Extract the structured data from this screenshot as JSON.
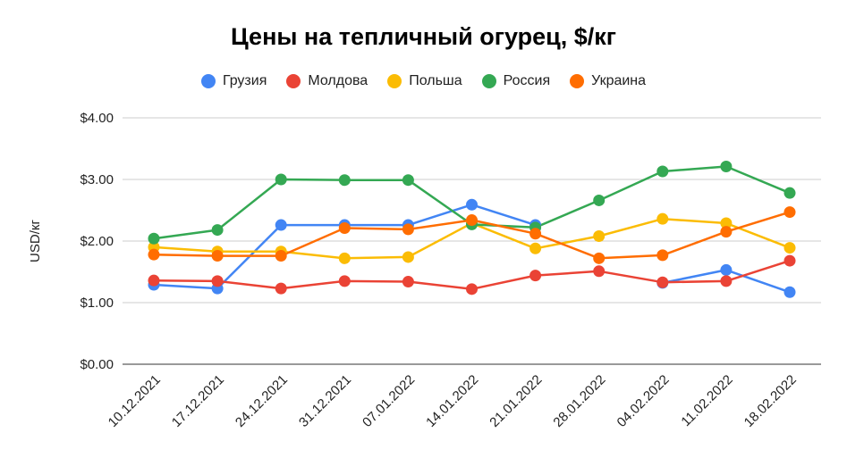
{
  "chart_data": {
    "type": "line",
    "title": "Цены на тепличный огурец, $/кг",
    "xlabel": "",
    "ylabel": "USD/кг",
    "ylim": [
      0,
      4
    ],
    "yticks": [
      "$0.00",
      "$1.00",
      "$2.00",
      "$3.00",
      "$4.00"
    ],
    "grid": true,
    "legend_position": "top",
    "categories": [
      "10.12.2021",
      "17.12.2021",
      "24.12.2021",
      "31.12.2021",
      "07.01.2022",
      "14.01.2022",
      "21.01.2022",
      "28.01.2022",
      "04.02.2022",
      "11.02.2022",
      "18.02.2022"
    ],
    "series": [
      {
        "name": "Грузия",
        "color": "#4285f4",
        "values": [
          1.29,
          1.23,
          2.26,
          2.26,
          2.26,
          2.59,
          2.26,
          null,
          1.32,
          1.53,
          1.17
        ]
      },
      {
        "name": "Молдова",
        "color": "#ea4335",
        "values": [
          1.36,
          1.35,
          1.23,
          1.35,
          1.34,
          1.22,
          1.44,
          1.51,
          1.33,
          1.35,
          1.68
        ]
      },
      {
        "name": "Польша",
        "color": "#fbbc04",
        "values": [
          1.9,
          1.83,
          1.83,
          1.72,
          1.74,
          2.29,
          1.88,
          2.08,
          2.36,
          2.29,
          1.89
        ]
      },
      {
        "name": "Россия",
        "color": "#34a853",
        "values": [
          2.04,
          2.18,
          3.0,
          2.99,
          2.99,
          2.27,
          2.22,
          2.66,
          3.13,
          3.21,
          2.78
        ]
      },
      {
        "name": "Украина",
        "color": "#ff6d01",
        "values": [
          1.78,
          1.76,
          1.76,
          2.21,
          2.19,
          2.34,
          2.12,
          1.72,
          1.77,
          2.15,
          2.47
        ]
      }
    ]
  }
}
